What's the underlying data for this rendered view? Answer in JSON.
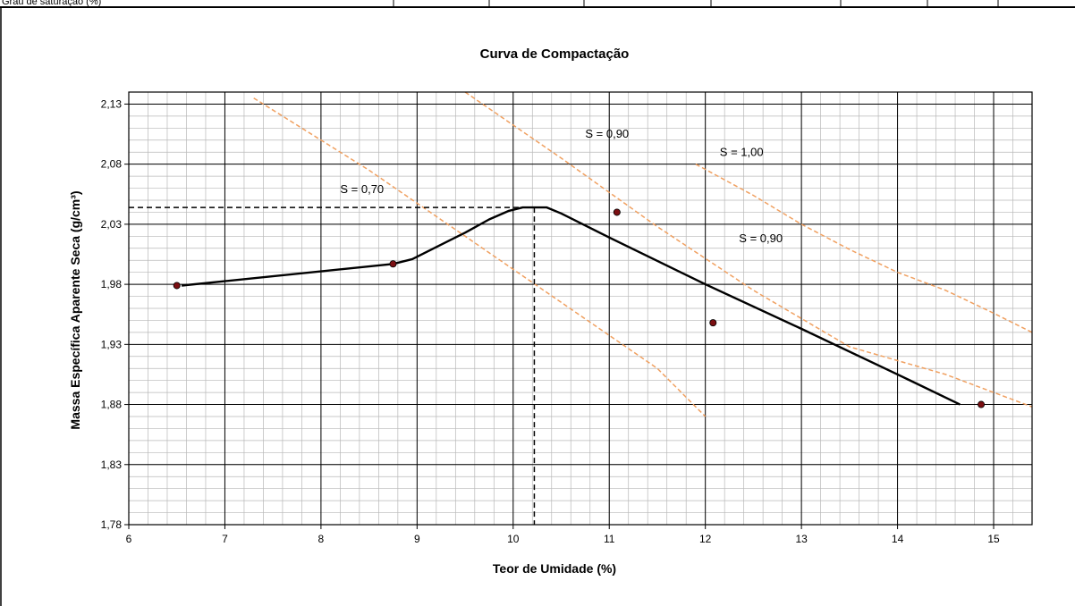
{
  "header_row": {
    "label": "Grau de saturação (%)"
  },
  "chart_data": {
    "type": "scatter",
    "title": "Curva de Compactação",
    "xlabel": "Teor de Umidade (%)",
    "ylabel": "Massa Específica Aparente Seca (g/cm³)",
    "xlim": [
      6,
      15.4
    ],
    "ylim": [
      1.78,
      2.14
    ],
    "x_ticks": [
      "6",
      "7",
      "8",
      "9",
      "10",
      "11",
      "12",
      "13",
      "14",
      "15"
    ],
    "y_ticks": [
      "1,78",
      "1,83",
      "1,88",
      "1,93",
      "1,98",
      "2,03",
      "2,08",
      "2,13"
    ],
    "grid": "major and minor",
    "series": [
      {
        "kind": "points",
        "color": "#7b0f12",
        "x": [
          6.5,
          8.75,
          11.08,
          12.08,
          14.87
        ],
        "y": [
          1.979,
          1.997,
          2.04,
          1.948,
          1.88
        ]
      },
      {
        "kind": "fitted-curve",
        "color": "#000000",
        "x": [
          6.55,
          8.75,
          8.95,
          9.2,
          9.5,
          9.75,
          9.95,
          10.1,
          10.25,
          10.35,
          10.5,
          11.0,
          12.0,
          13.0,
          14.0,
          14.65
        ],
        "y": [
          1.979,
          1.997,
          2.001,
          2.011,
          2.023,
          2.034,
          2.041,
          2.044,
          2.044,
          2.044,
          2.039,
          2.019,
          1.98,
          1.943,
          1.905,
          1.88
        ]
      },
      {
        "kind": "saturation-curve",
        "name": "S = 0,70",
        "color": "#f0a060",
        "x": [
          7.3,
          8.5,
          9.5,
          10.5,
          11.5,
          12.0
        ],
        "y": [
          2.135,
          2.075,
          2.02,
          1.965,
          1.91,
          1.87
        ]
      },
      {
        "kind": "saturation-curve",
        "name": "S = 0,90",
        "color": "#f0a060",
        "x": [
          9.5,
          10.5,
          11.5,
          12.5,
          13.5,
          14.5,
          15.4
        ],
        "y": [
          2.14,
          2.085,
          2.028,
          1.975,
          1.928,
          1.905,
          1.878
        ]
      },
      {
        "kind": "saturation-curve",
        "name": "S = 1,00",
        "color": "#f0a060",
        "x": [
          11.9,
          12.5,
          13.0,
          13.5,
          14.0,
          14.5,
          15.0,
          15.4
        ],
        "y": [
          2.08,
          2.054,
          2.03,
          2.009,
          1.99,
          1.975,
          1.956,
          1.94
        ]
      }
    ],
    "annotations": [
      {
        "text": "S = 0,70",
        "x": 8.2,
        "y": 2.056
      },
      {
        "text": "S = 0,90",
        "x": 10.75,
        "y": 2.102
      },
      {
        "text": "S = 1,00",
        "x": 12.15,
        "y": 2.087
      },
      {
        "text": "S = 0,90",
        "x": 12.35,
        "y": 2.015
      }
    ],
    "reference_lines": {
      "color": "#000000",
      "optimum_x": 10.22,
      "max_y": 2.044
    }
  }
}
